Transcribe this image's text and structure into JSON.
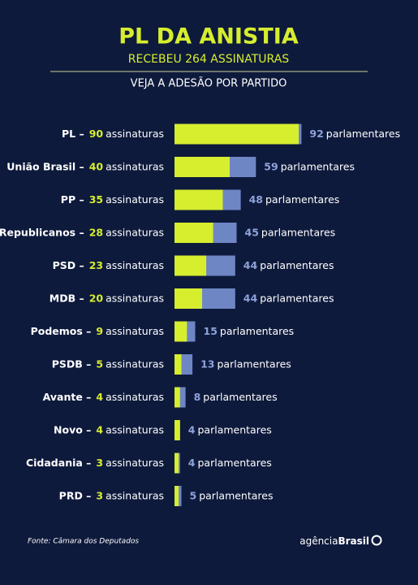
{
  "chart_data": {
    "type": "bar",
    "title": "PL DA ANISTIA",
    "subtitle": "RECEBEU 264 ASSINATURAS",
    "caption": "VEJA A ADESÃO POR PARTIDO",
    "categories": [
      "PL –",
      "União Brasil –",
      "PP –",
      "Republicanos –",
      "PSD –",
      "MDB –",
      "Podemos –",
      "PSDB –",
      "Avante –",
      "Novo –",
      "Cidadania –",
      "PRD –"
    ],
    "series": [
      {
        "name": "assinaturas",
        "color": "#d6ee2e",
        "values": [
          90,
          40,
          35,
          28,
          23,
          20,
          9,
          5,
          4,
          4,
          3,
          3
        ]
      },
      {
        "name": "parlamentares",
        "color": "#6e86c4",
        "values": [
          92,
          59,
          48,
          45,
          44,
          44,
          15,
          13,
          8,
          4,
          4,
          5
        ]
      }
    ],
    "source": "Fonte: Câmara dos Deputados",
    "logo": [
      "agência",
      "Brasil"
    ]
  }
}
